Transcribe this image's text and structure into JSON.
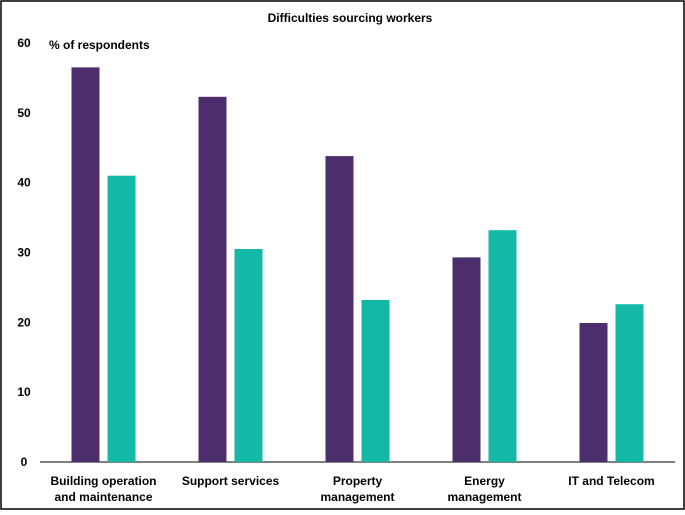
{
  "chart_data": {
    "type": "bar",
    "title": "Difficulties sourcing workers",
    "ylabel": "% of respondents",
    "xlabel": "",
    "ylim": [
      0,
      60
    ],
    "yticks": [
      0,
      10,
      20,
      30,
      40,
      50,
      60
    ],
    "grid": false,
    "legend": "none",
    "categories": [
      [
        "Building operation",
        "and maintenance"
      ],
      [
        "Support services"
      ],
      [
        "Property",
        "management"
      ],
      [
        "Energy",
        "management"
      ],
      [
        "IT and Telecom"
      ]
    ],
    "series": [
      {
        "color": "#4B2E6B",
        "values": [
          56.5,
          52.3,
          43.8,
          29.3,
          19.9
        ]
      },
      {
        "color": "#14B8A6",
        "values": [
          41.0,
          30.5,
          23.2,
          33.2,
          22.6
        ]
      }
    ]
  }
}
